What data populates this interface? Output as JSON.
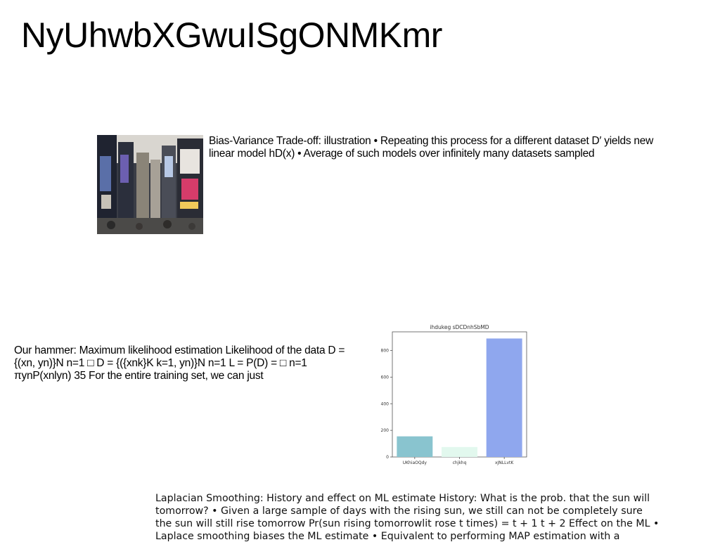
{
  "title": "NyUhwbXGwuISgONMKmr",
  "photo": {
    "alt": "city street with billboards"
  },
  "paragraphs": {
    "p1": "Bias-Variance Trade-off: illustration • Repeating this process for a different dataset D′ yields new linear model hD(x) • Average of such models over infinitely many datasets sampled",
    "p2": "Our hammer: Maximum likelihood estimation Likelihood of the data D = {(xn, yn)}N n=1 □ D = {({xnk}K k=1, yn)}N n=1 L = P(D) = □ n=1 πynP(xnlyn) 35 For the entire training set, we can just",
    "p3": "Laplacian Smoothing: History and effect on ML estimate History: What is the prob. that the sun will tomorrow? • Given a large sample of days with the rising sun, we still can not be completely sure the sun will still rise tomorrow Pr(sun rising tomorrowlit rose t times) = t + 1 t + 2 Effect on the ML • Laplace smoothing biases the ML estimate • Equivalent to performing MAP estimation with a"
  },
  "chart_data": {
    "type": "bar",
    "title": "ihdukeg sDCDnhSbMD",
    "xlabel": "",
    "ylabel": "",
    "categories": [
      "UKhiaOQdy",
      "chjkhq",
      "xJNLLvtK"
    ],
    "values": [
      155,
      75,
      890
    ],
    "colors": [
      "#89c4cf",
      "#e2f8ee",
      "#8fa7ee"
    ],
    "ylim": [
      0,
      940
    ],
    "yticks": [
      0,
      200,
      400,
      600,
      800
    ],
    "grid": false
  }
}
